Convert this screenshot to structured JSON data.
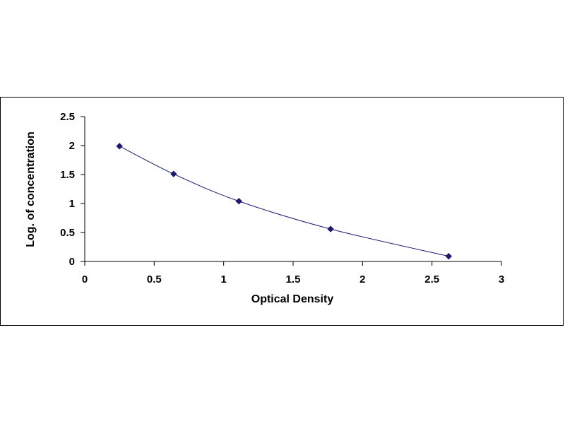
{
  "chart_data": {
    "type": "scatter",
    "xlabel": "Optical Density",
    "ylabel": "Log. of concentration",
    "xlim": [
      0,
      3
    ],
    "ylim": [
      0,
      2.5
    ],
    "xticks": [
      "0",
      "0.5",
      "1",
      "1.5",
      "2",
      "2.5",
      "3"
    ],
    "yticks": [
      "0",
      "0.5",
      "1",
      "1.5",
      "2",
      "2.5"
    ],
    "grid": false,
    "legend": "none",
    "series": [
      {
        "x": [
          0.25,
          0.64,
          1.11,
          1.77,
          2.62
        ],
        "y": [
          1.99,
          1.51,
          1.04,
          0.56,
          0.09
        ],
        "marker": "diamond",
        "line": "smooth",
        "color": "#1a1a6e"
      }
    ]
  }
}
